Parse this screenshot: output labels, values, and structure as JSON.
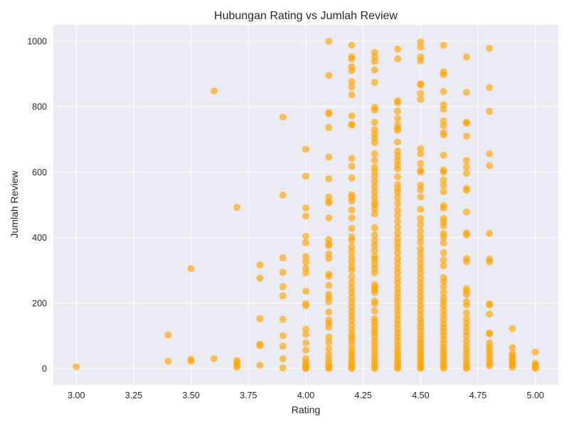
{
  "chart_data": {
    "type": "scatter",
    "title": "Hubungan Rating vs Jumlah Review",
    "xlabel": "Rating",
    "ylabel": "Jumlah Review",
    "xlim": [
      2.9,
      5.1
    ],
    "ylim": [
      -50,
      1050
    ],
    "xticks": [
      3.0,
      3.25,
      3.5,
      3.75,
      4.0,
      4.25,
      4.5,
      4.75,
      5.0
    ],
    "xtick_labels": [
      "3.00",
      "3.25",
      "3.50",
      "3.75",
      "4.00",
      "4.25",
      "4.50",
      "4.75",
      "5.00"
    ],
    "yticks": [
      0,
      200,
      400,
      600,
      800,
      1000
    ],
    "ytick_labels": [
      "0",
      "200",
      "400",
      "600",
      "800",
      "1000"
    ],
    "grid": true,
    "background_color": "#EAEAF2",
    "point_color": "#FFA500",
    "point_alpha": 0.65,
    "points": [
      [
        3.0,
        5
      ],
      [
        3.4,
        102
      ],
      [
        3.4,
        22
      ],
      [
        3.5,
        305
      ],
      [
        3.5,
        28
      ],
      [
        3.5,
        22
      ],
      [
        3.6,
        848
      ],
      [
        3.6,
        30
      ],
      [
        3.7,
        492
      ],
      [
        3.7,
        24
      ],
      [
        3.7,
        18
      ],
      [
        3.7,
        10
      ],
      [
        3.7,
        4
      ],
      [
        3.8,
        316
      ],
      [
        3.8,
        276
      ],
      [
        3.8,
        152
      ],
      [
        3.8,
        74
      ],
      [
        3.8,
        70
      ],
      [
        3.8,
        10
      ],
      [
        3.9,
        768
      ],
      [
        3.9,
        530
      ],
      [
        3.9,
        338
      ],
      [
        3.9,
        294
      ],
      [
        3.9,
        250
      ],
      [
        3.9,
        222
      ],
      [
        3.9,
        150
      ],
      [
        3.9,
        100
      ],
      [
        3.9,
        68
      ],
      [
        3.9,
        30
      ],
      [
        3.9,
        2
      ],
      [
        4.0,
        670
      ],
      [
        4.0,
        588
      ],
      [
        4.0,
        490
      ],
      [
        4.0,
        466
      ],
      [
        4.0,
        404
      ],
      [
        4.0,
        384
      ],
      [
        4.0,
        342
      ],
      [
        4.0,
        326
      ],
      [
        4.0,
        306
      ],
      [
        4.0,
        292
      ],
      [
        4.0,
        236
      ],
      [
        4.0,
        198
      ],
      [
        4.0,
        192
      ],
      [
        4.0,
        120
      ],
      [
        4.0,
        104
      ],
      [
        4.0,
        78
      ],
      [
        4.0,
        56
      ],
      [
        4.0,
        30
      ],
      [
        4.0,
        20
      ],
      [
        4.0,
        12
      ],
      [
        4.0,
        6
      ],
      [
        4.0,
        2
      ],
      [
        4.0,
        0
      ],
      [
        4.1,
        1000
      ],
      [
        4.1,
        896
      ],
      [
        4.1,
        782
      ],
      [
        4.1,
        778
      ],
      [
        4.1,
        736
      ],
      [
        4.1,
        646
      ],
      [
        4.1,
        580
      ],
      [
        4.1,
        524
      ],
      [
        4.1,
        510
      ],
      [
        4.1,
        506
      ],
      [
        4.1,
        460
      ],
      [
        4.1,
        394
      ],
      [
        4.1,
        380
      ],
      [
        4.1,
        376
      ],
      [
        4.1,
        350
      ],
      [
        4.1,
        336
      ],
      [
        4.1,
        288
      ],
      [
        4.1,
        282
      ],
      [
        4.1,
        254
      ],
      [
        4.1,
        226
      ],
      [
        4.1,
        216
      ],
      [
        4.1,
        204
      ],
      [
        4.1,
        172
      ],
      [
        4.1,
        148
      ],
      [
        4.1,
        138
      ],
      [
        4.1,
        126
      ],
      [
        4.1,
        96
      ],
      [
        4.1,
        80
      ],
      [
        4.1,
        60
      ],
      [
        4.1,
        42
      ],
      [
        4.1,
        30
      ],
      [
        4.1,
        18
      ],
      [
        4.1,
        8
      ],
      [
        4.1,
        2
      ],
      [
        4.1,
        0
      ],
      [
        4.2,
        988
      ],
      [
        4.2,
        952
      ],
      [
        4.2,
        946
      ],
      [
        4.2,
        922
      ],
      [
        4.2,
        910
      ],
      [
        4.2,
        876
      ],
      [
        4.2,
        860
      ],
      [
        4.2,
        836
      ],
      [
        4.2,
        772
      ],
      [
        4.2,
        746
      ],
      [
        4.2,
        744
      ],
      [
        4.2,
        642
      ],
      [
        4.2,
        618
      ],
      [
        4.2,
        582
      ],
      [
        4.2,
        530
      ],
      [
        4.2,
        524
      ],
      [
        4.2,
        512
      ],
      [
        4.2,
        484
      ],
      [
        4.2,
        460
      ],
      [
        4.2,
        428
      ],
      [
        4.2,
        402
      ],
      [
        4.2,
        392
      ],
      [
        4.2,
        372
      ],
      [
        4.2,
        358
      ],
      [
        4.2,
        340
      ],
      [
        4.2,
        326
      ],
      [
        4.2,
        310
      ],
      [
        4.2,
        300
      ],
      [
        4.2,
        280
      ],
      [
        4.2,
        262
      ],
      [
        4.2,
        246
      ],
      [
        4.2,
        232
      ],
      [
        4.2,
        216
      ],
      [
        4.2,
        202
      ],
      [
        4.2,
        188
      ],
      [
        4.2,
        174
      ],
      [
        4.2,
        160
      ],
      [
        4.2,
        148
      ],
      [
        4.2,
        132
      ],
      [
        4.2,
        118
      ],
      [
        4.2,
        104
      ],
      [
        4.2,
        96
      ],
      [
        4.2,
        86
      ],
      [
        4.2,
        72
      ],
      [
        4.2,
        58
      ],
      [
        4.2,
        48
      ],
      [
        4.2,
        38
      ],
      [
        4.2,
        28
      ],
      [
        4.2,
        18
      ],
      [
        4.2,
        10
      ],
      [
        4.2,
        4
      ],
      [
        4.2,
        0
      ],
      [
        4.3,
        966
      ],
      [
        4.3,
        952
      ],
      [
        4.3,
        938
      ],
      [
        4.3,
        912
      ],
      [
        4.3,
        874
      ],
      [
        4.3,
        798
      ],
      [
        4.3,
        790
      ],
      [
        4.3,
        752
      ],
      [
        4.3,
        730
      ],
      [
        4.3,
        716
      ],
      [
        4.3,
        704
      ],
      [
        4.3,
        690
      ],
      [
        4.3,
        656
      ],
      [
        4.3,
        636
      ],
      [
        4.3,
        614
      ],
      [
        4.3,
        602
      ],
      [
        4.3,
        588
      ],
      [
        4.3,
        572
      ],
      [
        4.3,
        556
      ],
      [
        4.3,
        540
      ],
      [
        4.3,
        524
      ],
      [
        4.3,
        508
      ],
      [
        4.3,
        500
      ],
      [
        4.3,
        488
      ],
      [
        4.3,
        472
      ],
      [
        4.3,
        430
      ],
      [
        4.3,
        408
      ],
      [
        4.3,
        390
      ],
      [
        4.3,
        376
      ],
      [
        4.3,
        360
      ],
      [
        4.3,
        342
      ],
      [
        4.3,
        334
      ],
      [
        4.3,
        320
      ],
      [
        4.3,
        306
      ],
      [
        4.3,
        292
      ],
      [
        4.3,
        256
      ],
      [
        4.3,
        248
      ],
      [
        4.3,
        240
      ],
      [
        4.3,
        232
      ],
      [
        4.3,
        206
      ],
      [
        4.3,
        198
      ],
      [
        4.3,
        176
      ],
      [
        4.3,
        152
      ],
      [
        4.3,
        142
      ],
      [
        4.3,
        130
      ],
      [
        4.3,
        118
      ],
      [
        4.3,
        108
      ],
      [
        4.3,
        96
      ],
      [
        4.3,
        82
      ],
      [
        4.3,
        70
      ],
      [
        4.3,
        58
      ],
      [
        4.3,
        46
      ],
      [
        4.3,
        34
      ],
      [
        4.3,
        24
      ],
      [
        4.3,
        14
      ],
      [
        4.3,
        6
      ],
      [
        4.3,
        0
      ],
      [
        4.4,
        976
      ],
      [
        4.4,
        946
      ],
      [
        4.4,
        818
      ],
      [
        4.4,
        812
      ],
      [
        4.4,
        786
      ],
      [
        4.4,
        764
      ],
      [
        4.4,
        744
      ],
      [
        4.4,
        732
      ],
      [
        4.4,
        728
      ],
      [
        4.4,
        692
      ],
      [
        4.4,
        664
      ],
      [
        4.4,
        650
      ],
      [
        4.4,
        636
      ],
      [
        4.4,
        622
      ],
      [
        4.4,
        610
      ],
      [
        4.4,
        586
      ],
      [
        4.4,
        562
      ],
      [
        4.4,
        548
      ],
      [
        4.4,
        538
      ],
      [
        4.4,
        522
      ],
      [
        4.4,
        504
      ],
      [
        4.4,
        484
      ],
      [
        4.4,
        468
      ],
      [
        4.4,
        450
      ],
      [
        4.4,
        432
      ],
      [
        4.4,
        414
      ],
      [
        4.4,
        398
      ],
      [
        4.4,
        384
      ],
      [
        4.4,
        370
      ],
      [
        4.4,
        354
      ],
      [
        4.4,
        336
      ],
      [
        4.4,
        322
      ],
      [
        4.4,
        306
      ],
      [
        4.4,
        292
      ],
      [
        4.4,
        276
      ],
      [
        4.4,
        262
      ],
      [
        4.4,
        246
      ],
      [
        4.4,
        232
      ],
      [
        4.4,
        218
      ],
      [
        4.4,
        204
      ],
      [
        4.4,
        190
      ],
      [
        4.4,
        176
      ],
      [
        4.4,
        162
      ],
      [
        4.4,
        148
      ],
      [
        4.4,
        134
      ],
      [
        4.4,
        120
      ],
      [
        4.4,
        108
      ],
      [
        4.4,
        96
      ],
      [
        4.4,
        84
      ],
      [
        4.4,
        72
      ],
      [
        4.4,
        60
      ],
      [
        4.4,
        50
      ],
      [
        4.4,
        40
      ],
      [
        4.4,
        30
      ],
      [
        4.4,
        20
      ],
      [
        4.4,
        12
      ],
      [
        4.4,
        4
      ],
      [
        4.4,
        0
      ],
      [
        4.5,
        998
      ],
      [
        4.5,
        982
      ],
      [
        4.5,
        952
      ],
      [
        4.5,
        940
      ],
      [
        4.5,
        870
      ],
      [
        4.5,
        866
      ],
      [
        4.5,
        840
      ],
      [
        4.5,
        822
      ],
      [
        4.5,
        672
      ],
      [
        4.5,
        656
      ],
      [
        4.5,
        626
      ],
      [
        4.5,
        606
      ],
      [
        4.5,
        600
      ],
      [
        4.5,
        560
      ],
      [
        4.5,
        546
      ],
      [
        4.5,
        524
      ],
      [
        4.5,
        486
      ],
      [
        4.5,
        458
      ],
      [
        4.5,
        440
      ],
      [
        4.5,
        420
      ],
      [
        4.5,
        402
      ],
      [
        4.5,
        386
      ],
      [
        4.5,
        366
      ],
      [
        4.5,
        352
      ],
      [
        4.5,
        336
      ],
      [
        4.5,
        320
      ],
      [
        4.5,
        306
      ],
      [
        4.5,
        292
      ],
      [
        4.5,
        276
      ],
      [
        4.5,
        262
      ],
      [
        4.5,
        248
      ],
      [
        4.5,
        234
      ],
      [
        4.5,
        220
      ],
      [
        4.5,
        206
      ],
      [
        4.5,
        192
      ],
      [
        4.5,
        178
      ],
      [
        4.5,
        164
      ],
      [
        4.5,
        150
      ],
      [
        4.5,
        138
      ],
      [
        4.5,
        126
      ],
      [
        4.5,
        114
      ],
      [
        4.5,
        102
      ],
      [
        4.5,
        90
      ],
      [
        4.5,
        80
      ],
      [
        4.5,
        70
      ],
      [
        4.5,
        60
      ],
      [
        4.5,
        50
      ],
      [
        4.5,
        42
      ],
      [
        4.5,
        34
      ],
      [
        4.5,
        26
      ],
      [
        4.5,
        18
      ],
      [
        4.5,
        10
      ],
      [
        4.5,
        4
      ],
      [
        4.5,
        0
      ],
      [
        4.6,
        988
      ],
      [
        4.6,
        906
      ],
      [
        4.6,
        898
      ],
      [
        4.6,
        846
      ],
      [
        4.6,
        806
      ],
      [
        4.6,
        792
      ],
      [
        4.6,
        756
      ],
      [
        4.6,
        742
      ],
      [
        4.6,
        720
      ],
      [
        4.6,
        714
      ],
      [
        4.6,
        652
      ],
      [
        4.6,
        606
      ],
      [
        4.6,
        600
      ],
      [
        4.6,
        576
      ],
      [
        4.6,
        560
      ],
      [
        4.6,
        540
      ],
      [
        4.6,
        498
      ],
      [
        4.6,
        490
      ],
      [
        4.6,
        458
      ],
      [
        4.6,
        448
      ],
      [
        4.6,
        436
      ],
      [
        4.6,
        412
      ],
      [
        4.6,
        402
      ],
      [
        4.6,
        384
      ],
      [
        4.6,
        354
      ],
      [
        4.6,
        332
      ],
      [
        4.6,
        314
      ],
      [
        4.6,
        278
      ],
      [
        4.6,
        266
      ],
      [
        4.6,
        250
      ],
      [
        4.6,
        232
      ],
      [
        4.6,
        216
      ],
      [
        4.6,
        204
      ],
      [
        4.6,
        192
      ],
      [
        4.6,
        178
      ],
      [
        4.6,
        164
      ],
      [
        4.6,
        150
      ],
      [
        4.6,
        136
      ],
      [
        4.6,
        124
      ],
      [
        4.6,
        112
      ],
      [
        4.6,
        100
      ],
      [
        4.6,
        88
      ],
      [
        4.6,
        76
      ],
      [
        4.6,
        64
      ],
      [
        4.6,
        54
      ],
      [
        4.6,
        44
      ],
      [
        4.6,
        34
      ],
      [
        4.6,
        24
      ],
      [
        4.6,
        14
      ],
      [
        4.6,
        6
      ],
      [
        4.6,
        0
      ],
      [
        4.7,
        952
      ],
      [
        4.7,
        844
      ],
      [
        4.7,
        752
      ],
      [
        4.7,
        750
      ],
      [
        4.7,
        710
      ],
      [
        4.7,
        636
      ],
      [
        4.7,
        616
      ],
      [
        4.7,
        596
      ],
      [
        4.7,
        550
      ],
      [
        4.7,
        544
      ],
      [
        4.7,
        478
      ],
      [
        4.7,
        414
      ],
      [
        4.7,
        408
      ],
      [
        4.7,
        336
      ],
      [
        4.7,
        326
      ],
      [
        4.7,
        244
      ],
      [
        4.7,
        236
      ],
      [
        4.7,
        226
      ],
      [
        4.7,
        204
      ],
      [
        4.7,
        194
      ],
      [
        4.7,
        170
      ],
      [
        4.7,
        152
      ],
      [
        4.7,
        140
      ],
      [
        4.7,
        126
      ],
      [
        4.7,
        112
      ],
      [
        4.7,
        100
      ],
      [
        4.7,
        84
      ],
      [
        4.7,
        70
      ],
      [
        4.7,
        58
      ],
      [
        4.7,
        46
      ],
      [
        4.7,
        34
      ],
      [
        4.7,
        22
      ],
      [
        4.7,
        12
      ],
      [
        4.7,
        4
      ],
      [
        4.7,
        0
      ],
      [
        4.8,
        978
      ],
      [
        4.8,
        858
      ],
      [
        4.8,
        786
      ],
      [
        4.8,
        656
      ],
      [
        4.8,
        620
      ],
      [
        4.8,
        412
      ],
      [
        4.8,
        334
      ],
      [
        4.8,
        326
      ],
      [
        4.8,
        198
      ],
      [
        4.8,
        194
      ],
      [
        4.8,
        166
      ],
      [
        4.8,
        108
      ],
      [
        4.8,
        106
      ],
      [
        4.8,
        78
      ],
      [
        4.8,
        66
      ],
      [
        4.8,
        56
      ],
      [
        4.8,
        46
      ],
      [
        4.8,
        36
      ],
      [
        4.8,
        26
      ],
      [
        4.8,
        16
      ],
      [
        4.8,
        8
      ],
      [
        4.9,
        122
      ],
      [
        4.9,
        64
      ],
      [
        4.9,
        46
      ],
      [
        4.9,
        38
      ],
      [
        4.9,
        30
      ],
      [
        4.9,
        22
      ],
      [
        4.9,
        16
      ],
      [
        4.9,
        10
      ],
      [
        4.9,
        4
      ],
      [
        5.0,
        50
      ],
      [
        5.0,
        16
      ],
      [
        5.0,
        10
      ],
      [
        5.0,
        4
      ],
      [
        5.0,
        0
      ]
    ]
  }
}
